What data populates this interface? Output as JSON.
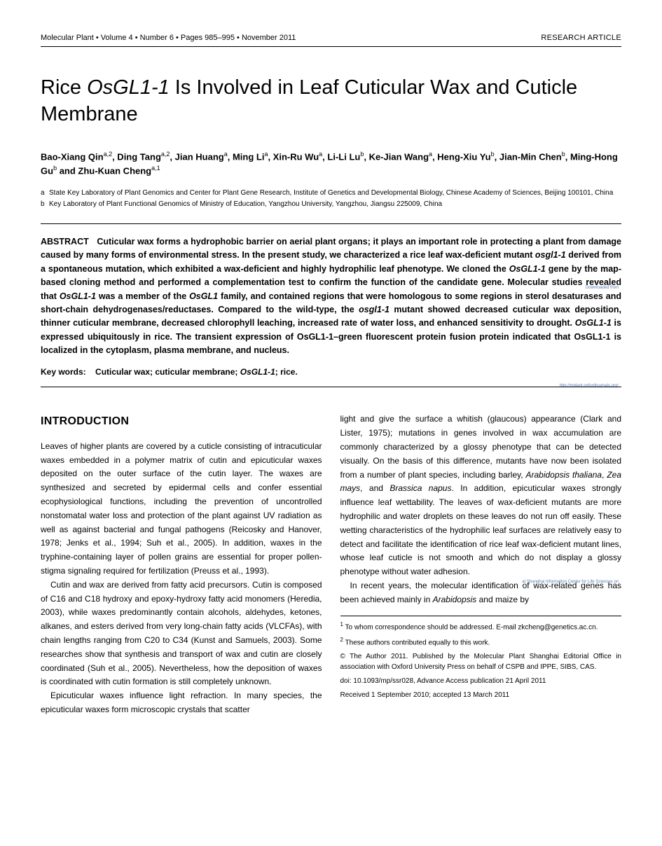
{
  "header": {
    "journal": "Molecular Plant",
    "volume": "Volume 4",
    "number": "Number 6",
    "pages": "Pages 985–995",
    "date": "November 2011",
    "articleType": "RESEARCH ARTICLE",
    "separator": " • "
  },
  "title": {
    "prefix": "Rice ",
    "gene": "OsGL1-1",
    "suffix": " Is Involved in Leaf Cuticular Wax and Cuticle Membrane"
  },
  "authors": {
    "list": "Bao-Xiang Qin",
    "a1sup": "a,2",
    "a2": ", Ding Tang",
    "a2sup": "a,2",
    "a3": ", Jian Huang",
    "a3sup": "a",
    "a4": ", Ming Li",
    "a4sup": "a",
    "a5": ", Xin-Ru Wu",
    "a5sup": "a",
    "a6": ", Li-Li Lu",
    "a6sup": "b",
    "a7": ", Ke-Jian Wang",
    "a7sup": "a",
    "a8": ", Heng-Xiu Yu",
    "a8sup": "b",
    "a9": ", Jian-Min Chen",
    "a9sup": "b",
    "a10": ", Ming-Hong Gu",
    "a10sup": "b",
    "a11": " and Zhu-Kuan Cheng",
    "a11sup": "a,1"
  },
  "affiliations": {
    "a": {
      "label": "a",
      "text": "State Key Laboratory of Plant Genomics and Center for Plant Gene Research, Institute of Genetics and Developmental Biology, Chinese Academy of Sciences, Beijing 100101, China"
    },
    "b": {
      "label": "b",
      "text": "Key Laboratory of Plant Functional Genomics of Ministry of Education, Yangzhou University, Yangzhou, Jiangsu 225009, China"
    }
  },
  "abstract": {
    "label": "ABSTRACT",
    "text1": "Cuticular wax forms a hydrophobic barrier on aerial plant organs; it plays an important role in protecting a plant from damage caused by many forms of environmental stress. In the present study, we characterized a rice leaf wax-deficient mutant ",
    "gene1": "osgl1-1",
    "text2": " derived from a spontaneous mutation, which exhibited a wax-deficient and highly hydrophilic leaf phenotype. We cloned the ",
    "gene2": "OsGL1-1",
    "text3": " gene by the map-based cloning method and performed a complementation test to confirm the function of the candidate gene. Molecular studies revealed that ",
    "gene3": "OsGL1-1",
    "text4": " was a member of the ",
    "gene4": "OsGL1",
    "text5": " family, and contained regions that were homologous to some regions in sterol desaturases and short-chain dehydrogenases/reductases. Compared to the wild-type, the ",
    "gene5": "osgl1-1",
    "text6": " mutant showed decreased cuticular wax deposition, thinner cuticular membrane, decreased chlorophyll leaching, increased rate of water loss, and enhanced sensitivity to drought. ",
    "gene6": "OsGL1-1",
    "text7": " is expressed ubiquitously in rice. The transient expression of OsGL1-1–green fluorescent protein fusion protein indicated that OsGL1-1 is localized in the cytoplasm, plasma membrane, and nucleus."
  },
  "keywords": {
    "label": "Key words:",
    "k1": "Cuticular wax; cuticular membrane; ",
    "k2": "OsGL1-1",
    "k3": "; rice."
  },
  "introduction": {
    "heading": "INTRODUCTION",
    "p1": "Leaves of higher plants are covered by a cuticle consisting of intracuticular waxes embedded in a polymer matrix of cutin and epicuticular waxes deposited on the outer surface of the cutin layer. The waxes are synthesized and secreted by epidermal cells and confer essential ecophysiological functions, including the prevention of uncontrolled nonstomatal water loss and protection of the plant against UV radiation as well as against bacterial and fungal pathogens (Reicosky and Hanover, 1978; Jenks et al., 1994; Suh et al., 2005). In addition, waxes in the tryphine-containing layer of pollen grains are essential for proper pollen-stigma signaling required for fertilization (Preuss et al., 1993).",
    "p2": "Cutin and wax are derived from fatty acid precursors. Cutin is composed of C16 and C18 hydroxy and epoxy-hydroxy fatty acid monomers (Heredia, 2003), while waxes predominantly contain alcohols, aldehydes, ketones, alkanes, and esters derived from very long-chain fatty acids (VLCFAs), with chain lengths ranging from C20 to C34 (Kunst and Samuels, 2003). Some researches show that synthesis and transport of wax and cutin are closely coordinated (Suh et al., 2005). Nevertheless, how the deposition of waxes is coordinated with cutin formation is still completely unknown.",
    "p3": "Epicuticular waxes influence light refraction. In many species, the epicuticular waxes form microscopic crystals that scatter",
    "p4a": "light and give the surface a whitish (glaucous) appearance (Clark and Lister, 1975); mutations in genes involved in wax accumulation are commonly characterized by a glossy phenotype that can be detected visually. On the basis of this difference, mutants have now been isolated from a number of plant species, including barley, ",
    "p4i1": "Arabidopsis thaliana",
    "p4b": ", ",
    "p4i2": "Zea mays",
    "p4c": ", and ",
    "p4i3": "Brassica napus",
    "p4d": ". In addition, epicuticular waxes strongly influence leaf wettability. The leaves of wax-deficient mutants are more hydrophilic and water droplets on these leaves do not run off easily. These wetting characteristics of the hydrophilic leaf surfaces are relatively easy to detect and facilitate the identification of rice leaf wax-deficient mutant lines, whose leaf cuticle is not smooth and which do not display a glossy phenotype without water adhesion.",
    "p5a": "In recent years, the molecular identification of wax-related genes has been achieved mainly in ",
    "p5i1": "Arabidopsis",
    "p5b": " and maize by"
  },
  "footnotes": {
    "f1sup": "1",
    "f1": " To whom correspondence should be addressed. E-mail zkcheng@genetics.ac.cn.",
    "f2sup": "2",
    "f2": " These authors contributed equally to this work.",
    "copyright": "© The Author 2011. Published by the Molecular Plant Shanghai Editorial Office in association with Oxford University Press on behalf of CSPB and IPPE, SIBS, CAS.",
    "doi": "doi: 10.1093/mp/ssr028, Advance Access publication 21 April 2011",
    "received": "Received 1 September 2010; accepted 13 March 2011"
  },
  "sideAnnotations": {
    "s1": "Downloaded from",
    "s2": "http://mplant.oxfordjournals.org/",
    "s3": "at Shanghai Information Center for Life Sciences on"
  },
  "styling": {
    "pageWidth": 945,
    "pageHeight": 1208,
    "backgroundColor": "#ffffff",
    "textColor": "#000000",
    "linkColor": "#5b7db3",
    "titleFontSize": 29,
    "authorsFontSize": 13,
    "abstractFontSize": 12.5,
    "bodyFontSize": 12,
    "affiliationFontSize": 10,
    "footnoteFontSize": 10,
    "headerFontSize": 11,
    "sectionHeadingFontSize": 16,
    "ruleColor": "#000000",
    "columnGap": 26,
    "bodyLineHeight": 1.65
  }
}
